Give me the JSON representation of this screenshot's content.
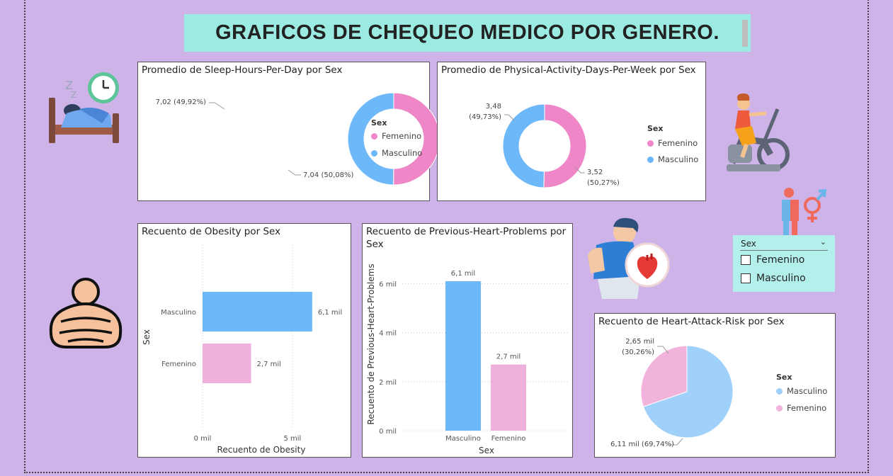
{
  "header": {
    "title": "GRAFICOS DE CHEQUEO MEDICO POR GENERO."
  },
  "colors": {
    "background": "#cdb3e8",
    "title_bg": "#9cebe3",
    "femenino_pink": "#ee86c8",
    "masculino_blue": "#6db8f9",
    "bar_pink": "#f0b0dc",
    "pie_blue": "#9fd1fb",
    "pie_pink": "#f1b3dc"
  },
  "chart_data": [
    {
      "type": "pie",
      "donut": true,
      "title": "Promedio de Sleep-Hours-Per-Day por Sex",
      "legend_title": "Sex",
      "legend_position": "right",
      "slices": [
        {
          "label": "Femenino",
          "value": 7.04,
          "data_label": "7,04 (50,08%)"
        },
        {
          "label": "Masculino",
          "value": 7.02,
          "data_label": "7,02 (49,92%)"
        }
      ]
    },
    {
      "type": "pie",
      "donut": true,
      "title": "Promedio de Physical-Activity-Days-Per-Week por Sex",
      "legend_title": "Sex",
      "legend_position": "right",
      "slices": [
        {
          "label": "Femenino",
          "value": 3.52,
          "data_label_line1": "3,52",
          "data_label_line2": "(50,27%)"
        },
        {
          "label": "Masculino",
          "value": 3.48,
          "data_label_line1": "3,48",
          "data_label_line2": "(49,73%)"
        }
      ]
    },
    {
      "type": "bar",
      "orientation": "horizontal",
      "title": "Recuento de Obesity por Sex",
      "xlabel": "Recuento de Obesity",
      "ylabel": "Sex",
      "categories": [
        "Masculino",
        "Femenino"
      ],
      "values": [
        6100,
        2700
      ],
      "data_labels": [
        "6,1 mil",
        "2,7 mil"
      ],
      "xticks": [
        {
          "value": 0,
          "label": "0 mil"
        },
        {
          "value": 5000,
          "label": "5 mil"
        }
      ],
      "xlim": [
        0,
        6500
      ],
      "grid": true
    },
    {
      "type": "bar",
      "orientation": "vertical",
      "title": "Recuento de Previous-Heart-Problems por Sex",
      "xlabel": "Sex",
      "ylabel": "Recuento de Previous-Heart-Problems",
      "categories": [
        "Masculino",
        "Femenino"
      ],
      "values": [
        6100,
        2700
      ],
      "data_labels": [
        "6,1 mil",
        "2,7 mil"
      ],
      "yticks": [
        {
          "value": 0,
          "label": "0 mil"
        },
        {
          "value": 2000,
          "label": "2 mil"
        },
        {
          "value": 4000,
          "label": "4 mil"
        },
        {
          "value": 6000,
          "label": "6 mil"
        }
      ],
      "ylim": [
        0,
        6100
      ],
      "grid": true
    },
    {
      "type": "pie",
      "title": "Recuento de Heart-Attack-Risk por Sex",
      "legend_title": "Sex",
      "legend_position": "right",
      "slices": [
        {
          "label": "Masculino",
          "value": 6110,
          "data_label": "6,11 mil (69,74%)"
        },
        {
          "label": "Femenino",
          "value": 2650,
          "data_label_line1": "2,65 mil",
          "data_label_line2": "(30,26%)"
        }
      ]
    }
  ],
  "slicer": {
    "title": "Sex",
    "options": [
      "Femenino",
      "Masculino"
    ]
  }
}
